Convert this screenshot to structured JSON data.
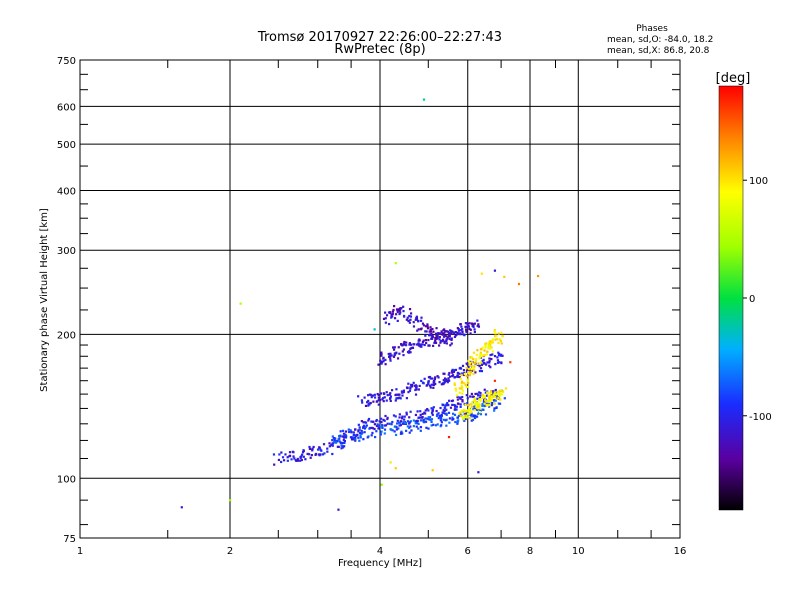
{
  "chart_data": {
    "type": "scatter",
    "title": "Tromsø 20170927 22:26:00–22:27:43",
    "subtitle": "RwPretec (8p)",
    "xlabel": "Frequency [MHz]",
    "ylabel": "Stationary phase Virtual Height [km]",
    "x_scale": "log2",
    "y_scale": "log",
    "xlim": [
      1,
      16
    ],
    "ylim": [
      75,
      750
    ],
    "x_ticks": [
      "1",
      "2",
      "4",
      "6",
      "8",
      "10",
      "16"
    ],
    "x_tick_values": [
      1,
      2,
      4,
      6,
      8,
      10,
      16
    ],
    "y_ticks": [
      "75",
      "100",
      "200",
      "300",
      "400",
      "500",
      "600",
      "750"
    ],
    "y_tick_values": [
      75,
      100,
      200,
      300,
      400,
      500,
      600,
      750
    ],
    "grid": true,
    "stats": {
      "title": "Phases",
      "line_o": "mean, sd,O: -84.0, 18.2",
      "line_x": "mean, sd,X: 86.8, 20.8"
    },
    "colorbar": {
      "label": "[deg]",
      "range": [
        -180,
        180
      ],
      "ticks": [
        "100",
        "0",
        "-100"
      ],
      "tick_values": [
        100,
        0,
        -100
      ]
    },
    "trace_bands": [
      {
        "name": "low-trace",
        "x": [
          2.5,
          2.8,
          3.1,
          3.5,
          3.8,
          4.3,
          4.8,
          5.3,
          5.8,
          6.3,
          7.0
        ],
        "y": [
          110,
          112,
          115,
          122,
          130,
          132,
          135,
          140,
          144,
          148,
          152
        ],
        "phase": -105
      },
      {
        "name": "lower-trace",
        "x": [
          3.2,
          3.5,
          4.0,
          4.5,
          5.0,
          5.5,
          6.0,
          6.5,
          7.0
        ],
        "y": [
          120,
          123,
          126,
          128,
          130,
          133,
          136,
          140,
          145
        ],
        "phase": -80
      },
      {
        "name": "mid-trace",
        "x": [
          3.7,
          4.0,
          4.4,
          4.8,
          5.2,
          5.6,
          6.0,
          6.5,
          7.0
        ],
        "y": [
          145,
          148,
          150,
          155,
          160,
          165,
          170,
          175,
          180
        ],
        "phase": -110
      },
      {
        "name": "upper-trace",
        "x": [
          4.0,
          4.3,
          4.7,
          5.1,
          5.5,
          5.9,
          6.3
        ],
        "y": [
          175,
          185,
          190,
          195,
          200,
          205,
          210
        ],
        "phase": -115
      },
      {
        "name": "top-trace",
        "x": [
          4.1,
          4.4,
          4.8,
          5.2,
          5.6
        ],
        "y": [
          215,
          225,
          210,
          200,
          195
        ],
        "phase": -120
      },
      {
        "name": "x-trace",
        "x": [
          5.7,
          6.0,
          6.3,
          6.6,
          7.0
        ],
        "y": [
          150,
          165,
          180,
          190,
          200
        ],
        "phase": 95
      },
      {
        "name": "x-trace-low",
        "x": [
          5.8,
          6.1,
          6.4,
          6.7,
          7.0
        ],
        "y": [
          135,
          140,
          145,
          148,
          150
        ],
        "phase": 90
      }
    ],
    "points": [
      {
        "x": 1.6,
        "y": 87,
        "phase": -110
      },
      {
        "x": 2.0,
        "y": 90,
        "phase": 40
      },
      {
        "x": 2.1,
        "y": 232,
        "phase": 50
      },
      {
        "x": 3.3,
        "y": 86,
        "phase": -110
      },
      {
        "x": 4.03,
        "y": 97,
        "phase": 40
      },
      {
        "x": 4.3,
        "y": 282,
        "phase": 50
      },
      {
        "x": 4.2,
        "y": 108,
        "phase": 100
      },
      {
        "x": 4.3,
        "y": 105,
        "phase": 110
      },
      {
        "x": 4.9,
        "y": 620,
        "phase": -20
      },
      {
        "x": 5.1,
        "y": 104,
        "phase": 110
      },
      {
        "x": 6.3,
        "y": 103,
        "phase": -110
      },
      {
        "x": 6.4,
        "y": 268,
        "phase": 100
      },
      {
        "x": 6.8,
        "y": 272,
        "phase": -110
      },
      {
        "x": 7.1,
        "y": 264,
        "phase": 110
      },
      {
        "x": 7.6,
        "y": 255,
        "phase": 140
      },
      {
        "x": 8.3,
        "y": 265,
        "phase": 130
      },
      {
        "x": 5.5,
        "y": 122,
        "phase": 170
      },
      {
        "x": 6.8,
        "y": 160,
        "phase": 165
      },
      {
        "x": 7.3,
        "y": 175,
        "phase": 160
      },
      {
        "x": 3.9,
        "y": 205,
        "phase": -40
      }
    ]
  }
}
